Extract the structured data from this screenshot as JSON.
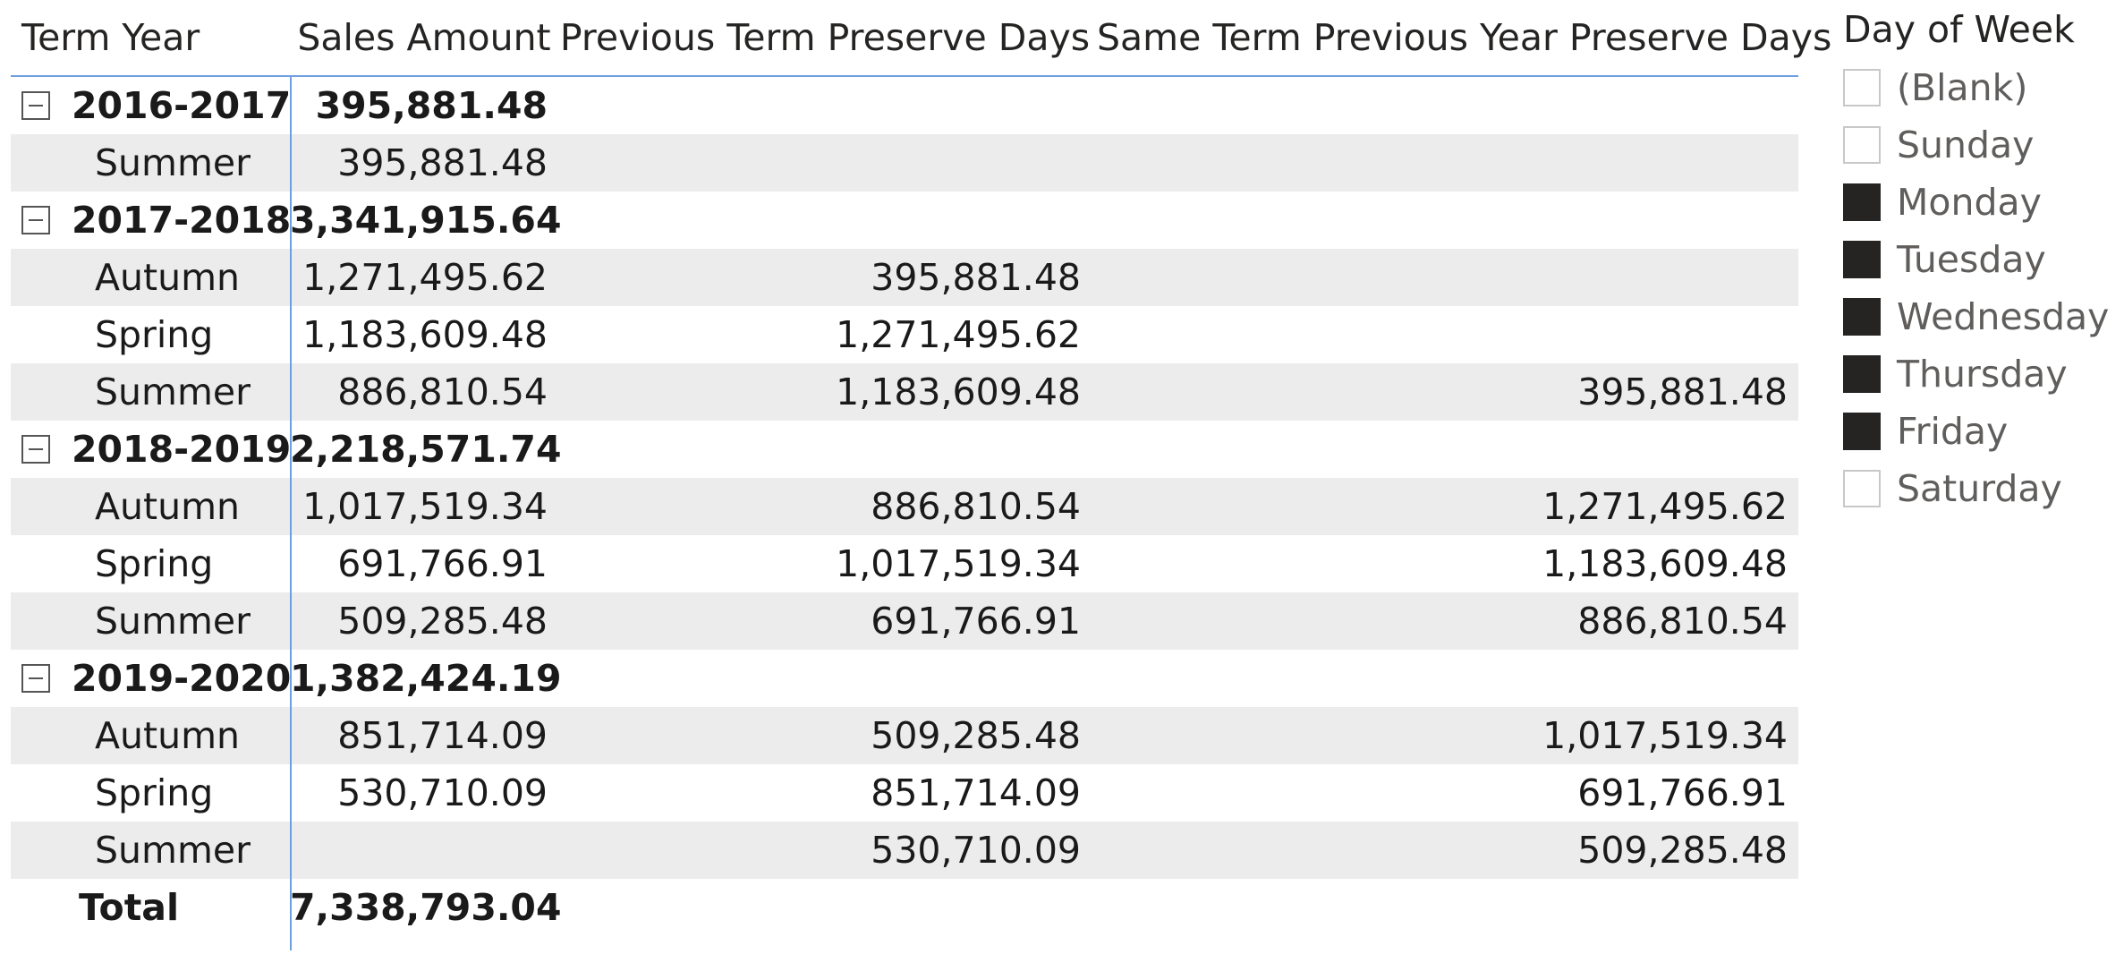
{
  "matrix": {
    "headers": [
      "Term Year",
      "Sales Amount",
      "Previous Term Preserve Days",
      "Same Term Previous Year Preserve Days"
    ],
    "rows": [
      {
        "type": "group",
        "label": "2016-2017",
        "sales": "395,881.48",
        "prev_term": "",
        "same_term_prev_year": ""
      },
      {
        "type": "child",
        "label": "Summer",
        "sales": "395,881.48",
        "prev_term": "",
        "same_term_prev_year": ""
      },
      {
        "type": "group",
        "label": "2017-2018",
        "sales": "3,341,915.64",
        "prev_term": "",
        "same_term_prev_year": ""
      },
      {
        "type": "child",
        "label": "Autumn",
        "sales": "1,271,495.62",
        "prev_term": "395,881.48",
        "same_term_prev_year": ""
      },
      {
        "type": "child",
        "label": "Spring",
        "sales": "1,183,609.48",
        "prev_term": "1,271,495.62",
        "same_term_prev_year": ""
      },
      {
        "type": "child",
        "label": "Summer",
        "sales": "886,810.54",
        "prev_term": "1,183,609.48",
        "same_term_prev_year": "395,881.48"
      },
      {
        "type": "group",
        "label": "2018-2019",
        "sales": "2,218,571.74",
        "prev_term": "",
        "same_term_prev_year": ""
      },
      {
        "type": "child",
        "label": "Autumn",
        "sales": "1,017,519.34",
        "prev_term": "886,810.54",
        "same_term_prev_year": "1,271,495.62"
      },
      {
        "type": "child",
        "label": "Spring",
        "sales": "691,766.91",
        "prev_term": "1,017,519.34",
        "same_term_prev_year": "1,183,609.48"
      },
      {
        "type": "child",
        "label": "Summer",
        "sales": "509,285.48",
        "prev_term": "691,766.91",
        "same_term_prev_year": "886,810.54"
      },
      {
        "type": "group",
        "label": "2019-2020",
        "sales": "1,382,424.19",
        "prev_term": "",
        "same_term_prev_year": ""
      },
      {
        "type": "child",
        "label": "Autumn",
        "sales": "851,714.09",
        "prev_term": "509,285.48",
        "same_term_prev_year": "1,017,519.34"
      },
      {
        "type": "child",
        "label": "Spring",
        "sales": "530,710.09",
        "prev_term": "851,714.09",
        "same_term_prev_year": "691,766.91"
      },
      {
        "type": "child",
        "label": "Summer",
        "sales": "",
        "prev_term": "530,710.09",
        "same_term_prev_year": "509,285.48"
      },
      {
        "type": "total",
        "label": "Total",
        "sales": "7,338,793.04",
        "prev_term": "",
        "same_term_prev_year": ""
      }
    ]
  },
  "slicer": {
    "title": "Day of Week",
    "items": [
      {
        "label": "(Blank)",
        "checked": false
      },
      {
        "label": "Sunday",
        "checked": false
      },
      {
        "label": "Monday",
        "checked": true
      },
      {
        "label": "Tuesday",
        "checked": true
      },
      {
        "label": "Wednesday",
        "checked": true
      },
      {
        "label": "Thursday",
        "checked": true
      },
      {
        "label": "Friday",
        "checked": true
      },
      {
        "label": "Saturday",
        "checked": false
      }
    ]
  },
  "colors": {
    "accent_line": "#6f9fe0",
    "row_shade": "#ececec",
    "checkbox_checked": "#252423",
    "checkbox_border": "#c8c8c8"
  },
  "icons": {
    "collapse": "minus-box-icon"
  }
}
